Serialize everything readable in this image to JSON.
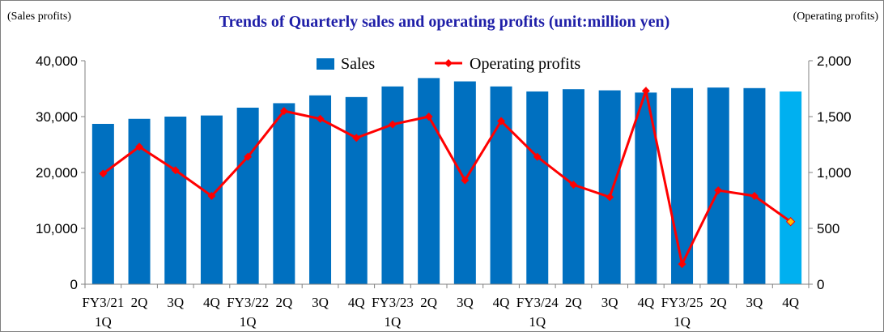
{
  "chart_data": {
    "type": "bar+line",
    "title": "Trends of Quarterly sales and operating profits (unit:million yen)",
    "left_axis_label": "(Sales profits)",
    "right_axis_label": "(Operating profits)",
    "categories": [
      [
        "FY3/21",
        "1Q"
      ],
      [
        "2Q"
      ],
      [
        "3Q"
      ],
      [
        "4Q"
      ],
      [
        "FY3/22",
        "1Q"
      ],
      [
        "2Q"
      ],
      [
        "3Q"
      ],
      [
        "4Q"
      ],
      [
        "FY3/23",
        "1Q"
      ],
      [
        "2Q"
      ],
      [
        "3Q"
      ],
      [
        "4Q"
      ],
      [
        "FY3/24",
        "1Q"
      ],
      [
        "2Q"
      ],
      [
        "3Q"
      ],
      [
        "4Q"
      ],
      [
        "FY3/25",
        "1Q"
      ],
      [
        "2Q"
      ],
      [
        "3Q"
      ],
      [
        "4Q"
      ]
    ],
    "series": [
      {
        "name": "Sales",
        "type": "bar",
        "axis": "left",
        "color": "#0070C0",
        "highlight_color": "#00B0F0",
        "highlight_index": 19,
        "values": [
          28700,
          29600,
          30000,
          30200,
          31600,
          32400,
          33800,
          33500,
          35400,
          36900,
          36300,
          35400,
          34500,
          34900,
          34700,
          34300,
          35100,
          35200,
          35100,
          34500
        ]
      },
      {
        "name": "Operating profits",
        "type": "line",
        "axis": "right",
        "color": "#FF0000",
        "highlight_color": "#FFC000",
        "highlight_index": 19,
        "values": [
          990,
          1230,
          1020,
          790,
          1140,
          1550,
          1480,
          1310,
          1430,
          1500,
          930,
          1460,
          1140,
          890,
          780,
          1730,
          180,
          840,
          790,
          560
        ]
      }
    ],
    "left_axis": {
      "min": 0,
      "max": 40000,
      "ticks": [
        "0",
        "10,000",
        "20,000",
        "30,000",
        "40,000"
      ]
    },
    "right_axis": {
      "min": 0,
      "max": 2000,
      "ticks": [
        "0",
        "500",
        "1,000",
        "1,500",
        "2,000"
      ]
    },
    "legend_position": "top-center",
    "grid": false
  }
}
